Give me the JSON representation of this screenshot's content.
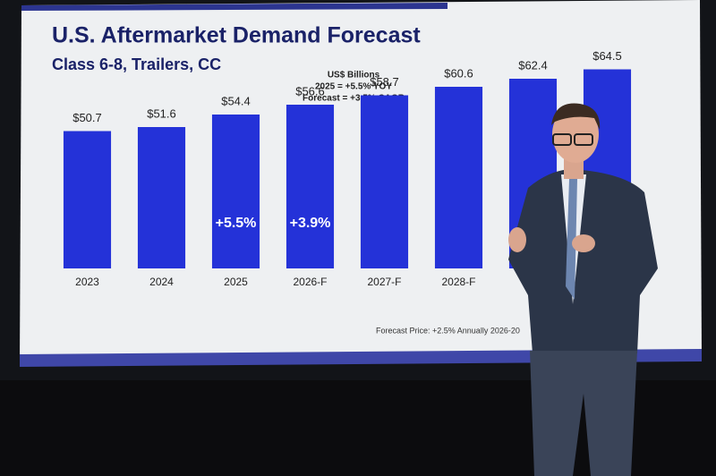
{
  "chart_data": {
    "type": "bar",
    "title": "U.S. Aftermarket Demand Forecast",
    "subtitle": "Class 6-8, Trailers, CC",
    "notes": [
      "US$ Billions",
      "2025 = +5.5% YOY",
      "Forecast = +3.5% CAGR"
    ],
    "categories": [
      "2023",
      "2024",
      "2025",
      "2026-F",
      "2027-F",
      "2028-F",
      null,
      null
    ],
    "values": [
      50.7,
      51.6,
      54.4,
      56.6,
      58.7,
      60.6,
      62.4,
      64.5
    ],
    "value_labels": [
      "$50.7",
      "$51.6",
      "$54.4",
      "$56.6",
      "$58.7",
      "$60.6",
      "$62.4",
      "$64.5"
    ],
    "bar_labels": [
      null,
      null,
      "+5.5%",
      "+3.9%",
      null,
      null,
      null,
      null
    ],
    "footnote": "Forecast Price: +2.5% Annually 2026-20",
    "color": "#2432d8",
    "ylim": [
      20,
      68
    ]
  }
}
